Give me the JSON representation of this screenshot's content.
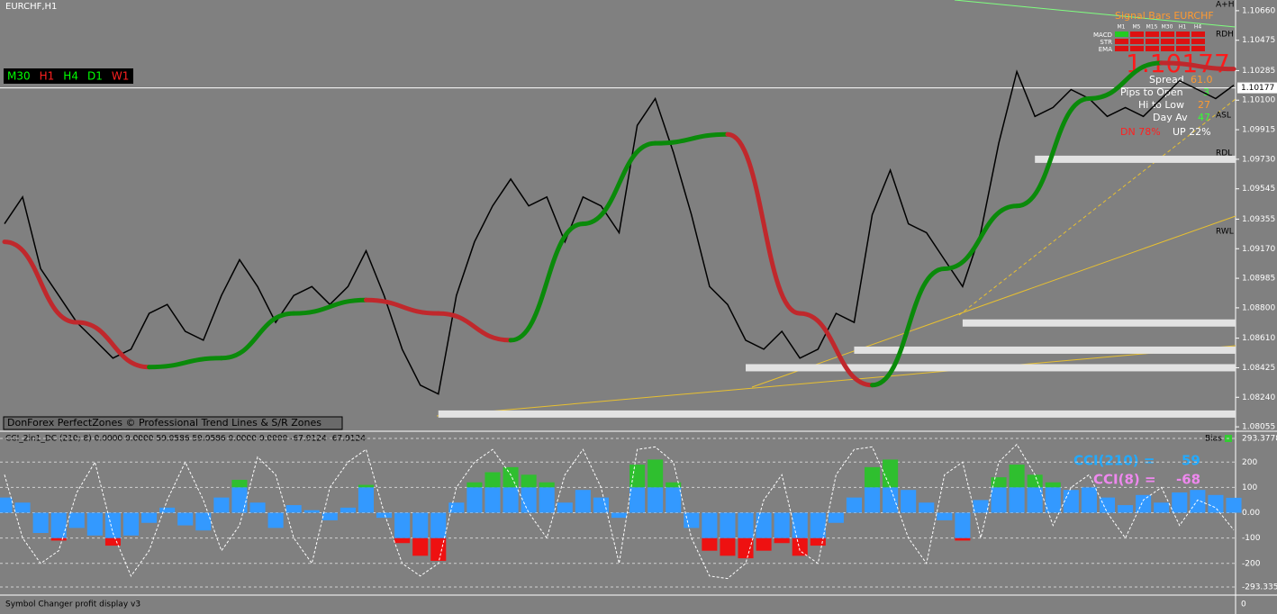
{
  "header": {
    "symbol": "EURCHF,H1"
  },
  "timeframes": [
    {
      "label": "M30",
      "color": "#00ff00"
    },
    {
      "label": "H1",
      "color": "#ff2020"
    },
    {
      "label": "H4",
      "color": "#00ff00"
    },
    {
      "label": "D1",
      "color": "#00ff00"
    },
    {
      "label": "W1",
      "color": "#ff2020"
    }
  ],
  "chart_data": [
    {
      "type": "line",
      "color": "#000000",
      "values": [
        1.09326,
        1.09494,
        1.09045,
        1.08877,
        1.08709,
        1.08597,
        1.08485,
        1.08541,
        1.08765,
        1.08821,
        1.08653,
        1.08597,
        1.08877,
        1.09101,
        1.08933,
        1.08709,
        1.08877,
        1.08933,
        1.08821,
        1.08933,
        1.09157,
        1.08877,
        1.08541,
        1.08316,
        1.0826,
        1.08877,
        1.09213,
        1.09438,
        1.09606,
        1.09438,
        1.09494,
        1.09213,
        1.09494,
        1.09438,
        1.0927,
        1.09942,
        1.1011,
        1.09774,
        1.09382,
        1.08933,
        1.08821,
        1.08597,
        1.08541,
        1.08653,
        1.08485,
        1.08541,
        1.08765,
        1.08709,
        1.09382,
        1.09662,
        1.09326,
        1.0927,
        1.09101,
        1.08933,
        1.0927,
        1.0983,
        1.10279,
        1.09998,
        1.10054,
        1.10166,
        1.1011,
        1.09998,
        1.10054,
        1.09998,
        1.1011,
        1.10222,
        1.10166,
        1.1011,
        1.10194
      ],
      "trend": {
        "values": [
          1.09213,
          1.08709,
          1.08429,
          1.08485,
          1.08765,
          1.08849,
          1.08765,
          1.08597,
          1.09326,
          1.0983,
          1.09886,
          1.08765,
          1.08316,
          1.09045,
          1.09438,
          1.1011,
          1.10333,
          1.10295
        ],
        "step": 4,
        "up_color": "#0a8a0a",
        "down_color": "#c0282c"
      },
      "zones": {
        "values": [
          1.08135,
          1.08425,
          1.08535,
          1.08705,
          1.0973
        ],
        "start": [
          24,
          41,
          47,
          53,
          57
        ],
        "color": "#e2e2e2"
      },
      "ylim": [
        1.08033,
        1.10727
      ],
      "yticks": [
        {
          "value": 1.1066,
          "label": "1.10660"
        },
        {
          "value": 1.10475,
          "label": "1.10475"
        },
        {
          "value": 1.10285,
          "label": "1.10285"
        },
        {
          "value": 1.101,
          "label": "1.10100"
        },
        {
          "value": 1.09915,
          "label": "1.09915"
        },
        {
          "value": 1.0973,
          "label": "1.09730"
        },
        {
          "value": 1.09545,
          "label": "1.09545"
        },
        {
          "value": 1.09355,
          "label": "1.09355"
        },
        {
          "value": 1.0917,
          "label": "1.09170"
        },
        {
          "value": 1.08985,
          "label": "1.08985"
        },
        {
          "value": 1.088,
          "label": "1.08800"
        },
        {
          "value": 1.0861,
          "label": "1.08610"
        },
        {
          "value": 1.08425,
          "label": "1.08425"
        },
        {
          "value": 1.0824,
          "label": "1.08240"
        },
        {
          "value": 1.08055,
          "label": "1.08055"
        }
      ],
      "current_price": {
        "value": 1.10177,
        "label": "1.10177"
      },
      "watermark": "DonForex PerfectZones © Professional Trend Lines & S/R Zones"
    },
    {
      "type": "bar",
      "title": "CCI_2in1_DC (210; 8) 0.0000 0.0000 59.0586 59.0586 0.0000 0.0000 -67.9124 -67.9124",
      "values": [
        60,
        40,
        -80,
        -110,
        -60,
        -90,
        -130,
        -90,
        -40,
        20,
        -50,
        -70,
        60,
        130,
        40,
        -60,
        30,
        10,
        -30,
        20,
        110,
        -20,
        -120,
        -170,
        -190,
        40,
        120,
        160,
        180,
        150,
        120,
        40,
        90,
        60,
        -20,
        190,
        210,
        120,
        -60,
        -150,
        -170,
        -180,
        -150,
        -120,
        -170,
        -130,
        -40,
        60,
        180,
        210,
        90,
        40,
        -30,
        -110,
        50,
        140,
        190,
        150,
        120,
        90,
        100,
        60,
        30,
        70,
        40,
        80,
        90,
        70,
        59
      ],
      "colors": {
        "mid": "#3399ff",
        "up": "#2fbf2f",
        "down": "#ee1111"
      },
      "cci8": {
        "values": [
          150,
          -100,
          -200,
          -150,
          80,
          200,
          -80,
          -250,
          -150,
          50,
          200,
          50,
          -150,
          -50,
          220,
          150,
          -100,
          -200,
          100,
          200,
          250,
          0,
          -200,
          -250,
          -200,
          100,
          200,
          250,
          150,
          0,
          -100,
          150,
          250,
          100,
          -200,
          250,
          260,
          200,
          -100,
          -250,
          -260,
          -200,
          50,
          150,
          -150,
          -200,
          150,
          250,
          260,
          100,
          -100,
          -200,
          150,
          200,
          -100,
          200,
          270,
          150,
          -50,
          100,
          150,
          0,
          -100,
          50,
          100,
          -50,
          50,
          20,
          -68
        ],
        "color": "#ffffff"
      },
      "ylim": [
        -293.3354,
        293.3778
      ],
      "yticks": [
        293.3778,
        200,
        100,
        {
          "value": 0,
          "label": "0.00"
        },
        -100,
        -200,
        -293.3354
      ],
      "bias": "Bias",
      "cci210_label": "CCI(210) =",
      "cci210_value": "59",
      "cci8_label": "CCI(8) =",
      "cci8_value": "-68"
    }
  ],
  "info": {
    "title": "Signal Bars EURCHF",
    "rows": [
      "MACD",
      "STR",
      "EMA"
    ],
    "columns": [
      "M1",
      "M5",
      "M15",
      "M30",
      "H1",
      "H4"
    ],
    "price": "1.10177",
    "spread": "Spread",
    "spread_value": "61.0",
    "pips_to_open": "Pips to Open",
    "pips_value": "3",
    "hi_to_low": "Hi to Low",
    "hi_low_value": "27",
    "day_av": "Day Av",
    "day_av_value": "47",
    "down": "DN 78%",
    "up": "UP 22%"
  },
  "levels": [
    "A+H",
    "RDH",
    "ASL",
    "RDL",
    "RWL"
  ],
  "footer": {
    "title": "Symbol Changer profit display v3",
    "value": "0"
  }
}
